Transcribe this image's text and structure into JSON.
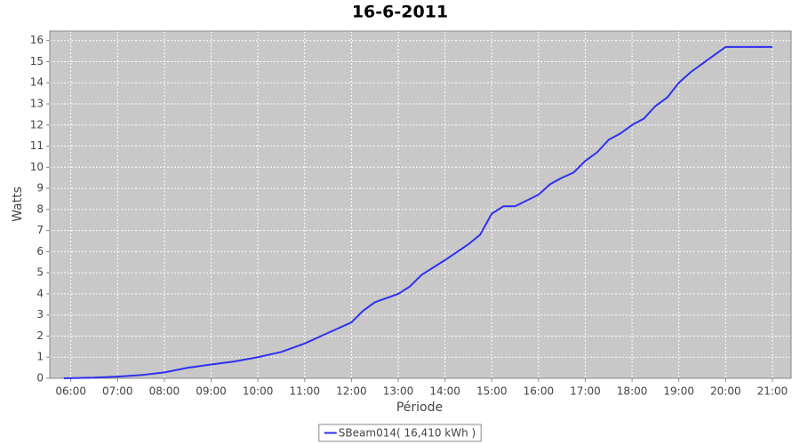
{
  "chart_data": {
    "type": "line",
    "title": "16-6-2011",
    "x_label": "Période",
    "y_label": "Watts",
    "x": [
      5.85,
      6.5,
      7,
      7.5,
      8,
      8.5,
      9,
      9.5,
      10,
      10.5,
      11,
      11.5,
      12,
      12.25,
      12.5,
      13,
      13.25,
      13.5,
      14,
      14.5,
      14.75,
      15,
      15.25,
      15.5,
      16,
      16.25,
      16.5,
      16.75,
      17,
      17.25,
      17.5,
      17.75,
      18,
      18.25,
      18.5,
      18.75,
      19,
      19.25,
      19.5,
      19.75,
      20,
      21
    ],
    "series": [
      {
        "name": "SBeam014( 16,410 kWh )",
        "color": "#3030f0",
        "values": [
          0,
          0.03,
          0.08,
          0.15,
          0.28,
          0.5,
          0.65,
          0.8,
          1.0,
          1.25,
          1.65,
          2.15,
          2.65,
          3.2,
          3.6,
          4.0,
          4.35,
          4.9,
          5.6,
          6.35,
          6.8,
          7.8,
          8.15,
          8.15,
          8.7,
          9.2,
          9.5,
          9.75,
          10.3,
          10.7,
          11.3,
          11.6,
          12.0,
          12.3,
          12.9,
          13.3,
          14.0,
          14.5,
          14.9,
          15.3,
          15.7,
          15.7
        ]
      }
    ],
    "xlim": [
      5.55,
      21.4
    ],
    "xticks": [
      {
        "value": 6,
        "label": "06:00"
      },
      {
        "value": 7,
        "label": "07:00"
      },
      {
        "value": 8,
        "label": "08:00"
      },
      {
        "value": 9,
        "label": "09:00"
      },
      {
        "value": 10,
        "label": "10:00"
      },
      {
        "value": 11,
        "label": "11:00"
      },
      {
        "value": 12,
        "label": "12:00"
      },
      {
        "value": 13,
        "label": "13:00"
      },
      {
        "value": 14,
        "label": "14:00"
      },
      {
        "value": 15,
        "label": "15:00"
      },
      {
        "value": 16,
        "label": "16:00"
      },
      {
        "value": 17,
        "label": "17:00"
      },
      {
        "value": 18,
        "label": "18:00"
      },
      {
        "value": 19,
        "label": "19:00"
      },
      {
        "value": 20,
        "label": "20:00"
      },
      {
        "value": 21,
        "label": "21:00"
      }
    ],
    "ylim": [
      0,
      16.45
    ],
    "yticks": [
      0,
      1,
      2,
      3,
      4,
      5,
      6,
      7,
      8,
      9,
      10,
      11,
      12,
      13,
      14,
      15,
      16
    ],
    "grid": true,
    "plot_background": "#c8c8c8",
    "grid_color": "#ffffff",
    "legend": "bottom"
  }
}
